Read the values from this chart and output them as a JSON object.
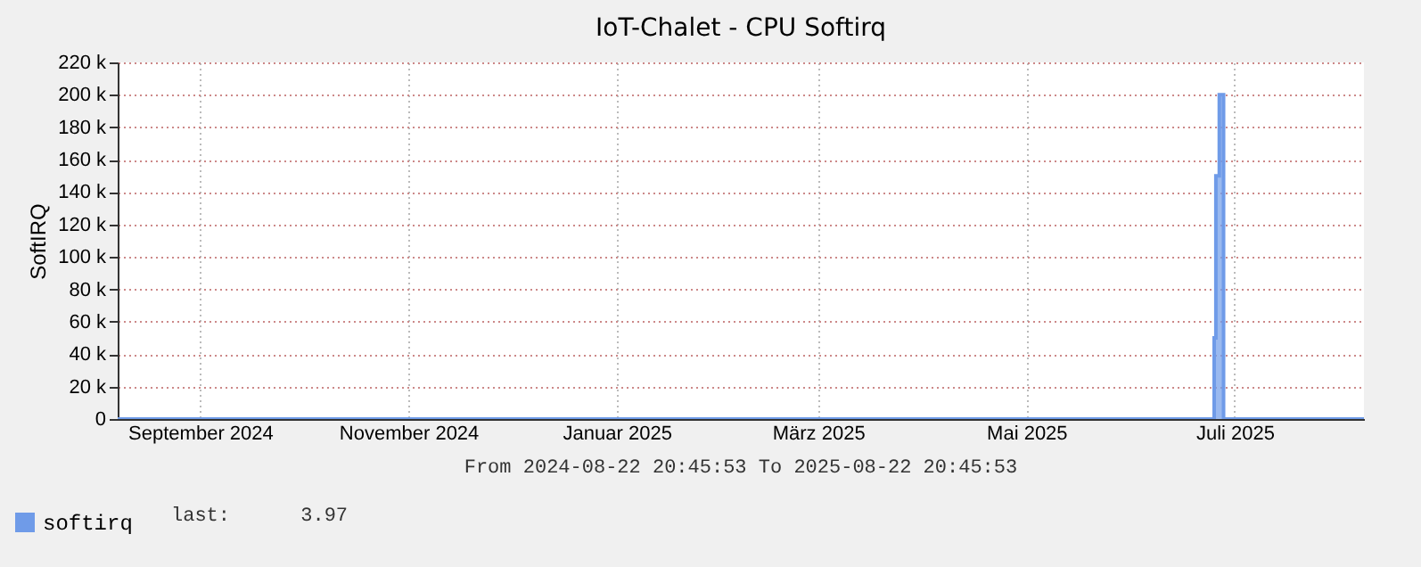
{
  "chart_data": {
    "type": "area",
    "title": "IoT-Chalet - CPU Softirq",
    "ylabel": "SoftIRQ",
    "annotations": [
      "From 2024-08-22 20:45:53 To 2025-08-22 20:45:53",
      "last:      3.97"
    ],
    "x": [
      "2024-08-22T20:45",
      "2025-07-09T00:00",
      "2025-07-10T00:00",
      "2025-07-10T12:00",
      "2025-07-11T12:00",
      "2025-07-12T18:00",
      "2025-08-22T20:45"
    ],
    "series": [
      {
        "name": "softirq",
        "color": "#6f9be8",
        "values": [
          0,
          0,
          50000,
          150000,
          200000,
          0,
          0
        ]
      }
    ],
    "xlim": [
      "2024-08-22T20:45",
      "2025-08-22T20:45"
    ],
    "xticks": [
      {
        "value": "2024-09-16",
        "label": "September 2024"
      },
      {
        "value": "2024-11-16",
        "label": "November 2024"
      },
      {
        "value": "2025-01-16",
        "label": "Januar 2025"
      },
      {
        "value": "2025-03-16",
        "label": "März 2025"
      },
      {
        "value": "2025-05-16",
        "label": "Mai 2025"
      },
      {
        "value": "2025-07-16",
        "label": "Juli 2025"
      }
    ],
    "ylim": [
      0,
      220000
    ],
    "yticks": [
      0,
      {
        "value": 20000,
        "label": "20 k"
      },
      {
        "value": 40000,
        "label": "40 k"
      },
      {
        "value": 60000,
        "label": "60 k"
      },
      {
        "value": 80000,
        "label": "80 k"
      },
      {
        "value": 100000,
        "label": "100 k"
      },
      {
        "value": 120000,
        "label": "120 k"
      },
      {
        "value": 140000,
        "label": "140 k"
      },
      {
        "value": 160000,
        "label": "160 k"
      },
      {
        "value": 180000,
        "label": "180 k"
      },
      {
        "value": 200000,
        "label": "200 k"
      },
      {
        "value": 220000,
        "label": "220 k"
      }
    ],
    "grid": true,
    "legend": "bottom left"
  }
}
